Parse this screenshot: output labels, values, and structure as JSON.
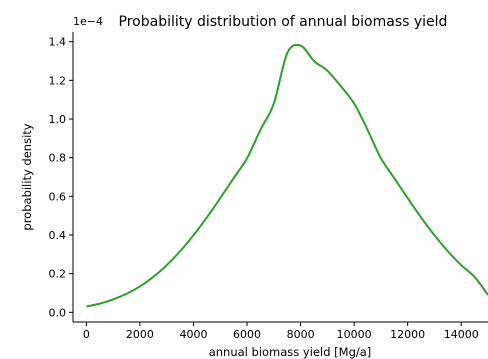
{
  "chart_data": {
    "type": "line",
    "title": "Probability distribution of annual biomass yield",
    "xlabel": "annual biomass yield [Mg/a]",
    "ylabel": "probability density",
    "y_offset_label": "1e−4",
    "xlim": [
      -500,
      15000
    ],
    "ylim": [
      -0.05,
      1.45
    ],
    "y_multiplier": 0.0001,
    "grid": false,
    "legend": "none",
    "x_ticks": [
      0,
      2000,
      4000,
      6000,
      8000,
      10000,
      12000,
      14000
    ],
    "x_tick_labels": [
      "0",
      "2000",
      "4000",
      "6000",
      "8000",
      "10000",
      "12000",
      "14000"
    ],
    "y_ticks": [
      0.0,
      0.2,
      0.4,
      0.6,
      0.8,
      1.0,
      1.2,
      1.4
    ],
    "y_tick_labels": [
      "0.0",
      "0.2",
      "0.4",
      "0.6",
      "0.8",
      "1.0",
      "1.2",
      "1.4"
    ],
    "series": [
      {
        "color": "#2ca02c",
        "x": [
          0,
          500,
          1000,
          1500,
          2000,
          2500,
          3000,
          3500,
          4000,
          4500,
          5000,
          5500,
          6000,
          6500,
          7000,
          7500,
          8000,
          8500,
          9000,
          9500,
          10000,
          10500,
          11000,
          11500,
          12000,
          12500,
          13000,
          13500,
          14000,
          14500,
          15000
        ],
        "y": [
          0.03,
          0.045,
          0.067,
          0.096,
          0.134,
          0.183,
          0.244,
          0.316,
          0.399,
          0.491,
          0.591,
          0.694,
          0.797,
          0.944,
          1.08,
          1.34,
          1.38,
          1.3,
          1.25,
          1.17,
          1.08,
          0.944,
          0.797,
          0.694,
          0.591,
          0.491,
          0.399,
          0.316,
          0.244,
          0.183,
          0.09
        ]
      }
    ]
  }
}
